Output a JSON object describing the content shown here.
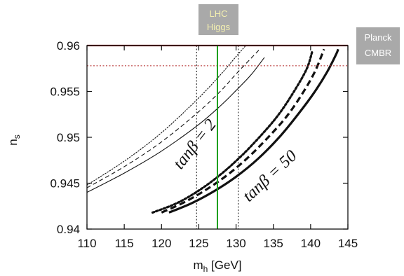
{
  "chart_data": {
    "type": "line",
    "xlabel": "m_h [GeV]",
    "ylabel": "n_s",
    "xlim": [
      110,
      145
    ],
    "ylim": [
      0.94,
      0.96
    ],
    "xticks": [
      110,
      115,
      120,
      125,
      130,
      135,
      140,
      145
    ],
    "yticks": [
      0.94,
      0.945,
      0.95,
      0.955,
      0.96
    ],
    "ytick_labels": [
      "0.94",
      "0.945",
      "0.95",
      "0.955",
      "0.96"
    ],
    "grid": false,
    "series": [
      {
        "group": "tanb2",
        "style": "dotted",
        "weight": "thin",
        "x": [
          110,
          115,
          120,
          125,
          128,
          130,
          131.2
        ],
        "y": [
          0.9448,
          0.9474,
          0.9505,
          0.9543,
          0.9569,
          0.9588,
          0.9599
        ]
      },
      {
        "group": "tanb2",
        "style": "dashed",
        "weight": "thin",
        "x": [
          110,
          115,
          120,
          125,
          128,
          130,
          132,
          133.3
        ],
        "y": [
          0.9445,
          0.9468,
          0.9495,
          0.9528,
          0.9551,
          0.9569,
          0.9586,
          0.9597
        ]
      },
      {
        "group": "tanb2",
        "style": "solid",
        "weight": "thin",
        "x": [
          110,
          115,
          120,
          125,
          128,
          130,
          132,
          133.8
        ],
        "y": [
          0.944,
          0.9461,
          0.9485,
          0.9514,
          0.9535,
          0.9551,
          0.9568,
          0.9587
        ]
      },
      {
        "group": "tanb50",
        "style": "dotted",
        "weight": "thick",
        "x": [
          118.8,
          122,
          125,
          128,
          131,
          134,
          136,
          138,
          139.5,
          140.2
        ],
        "y": [
          0.9418,
          0.9428,
          0.9442,
          0.946,
          0.9482,
          0.9508,
          0.9528,
          0.9553,
          0.9575,
          0.9593
        ]
      },
      {
        "group": "tanb50",
        "style": "dashed",
        "weight": "thick",
        "x": [
          120,
          123,
          126,
          129,
          132,
          135,
          137,
          139,
          140.6,
          141.8
        ],
        "y": [
          0.9418,
          0.9429,
          0.9443,
          0.946,
          0.9481,
          0.9506,
          0.9525,
          0.9549,
          0.9572,
          0.9596
        ]
      },
      {
        "group": "tanb50",
        "style": "solid",
        "weight": "thick",
        "x": [
          121,
          124,
          127,
          130,
          133,
          136,
          138.5,
          140.5,
          142.2,
          143.4,
          143.7
        ],
        "y": [
          0.9418,
          0.9428,
          0.9441,
          0.9457,
          0.9477,
          0.9502,
          0.9527,
          0.9549,
          0.9571,
          0.959,
          0.9596
        ]
      }
    ],
    "reference_lines": {
      "planck_central_ns": 0.96,
      "planck_bound_ns": 0.9578,
      "higgs_central_mh": 127.5,
      "higgs_band_mh": [
        124.7,
        130.3
      ]
    },
    "annotations": {
      "tanb2": "tanβ = 2",
      "tanb50": "tanβ = 50",
      "lhc_line1": "LHC",
      "lhc_line2": "Higgs",
      "planck_line1": "Planck",
      "planck_line2": "CMBR"
    },
    "colors": {
      "planck_line": "#8b1a1a",
      "planck_bound": "#b02020",
      "higgs_line": "#1fa01f",
      "lhc_badge_bg": "#a9a9a9",
      "lhc_badge_text": "#f4f0b0",
      "planck_badge_bg": "#a9a9a9",
      "planck_badge_text": "#ffffff",
      "curves": "#111111"
    }
  }
}
